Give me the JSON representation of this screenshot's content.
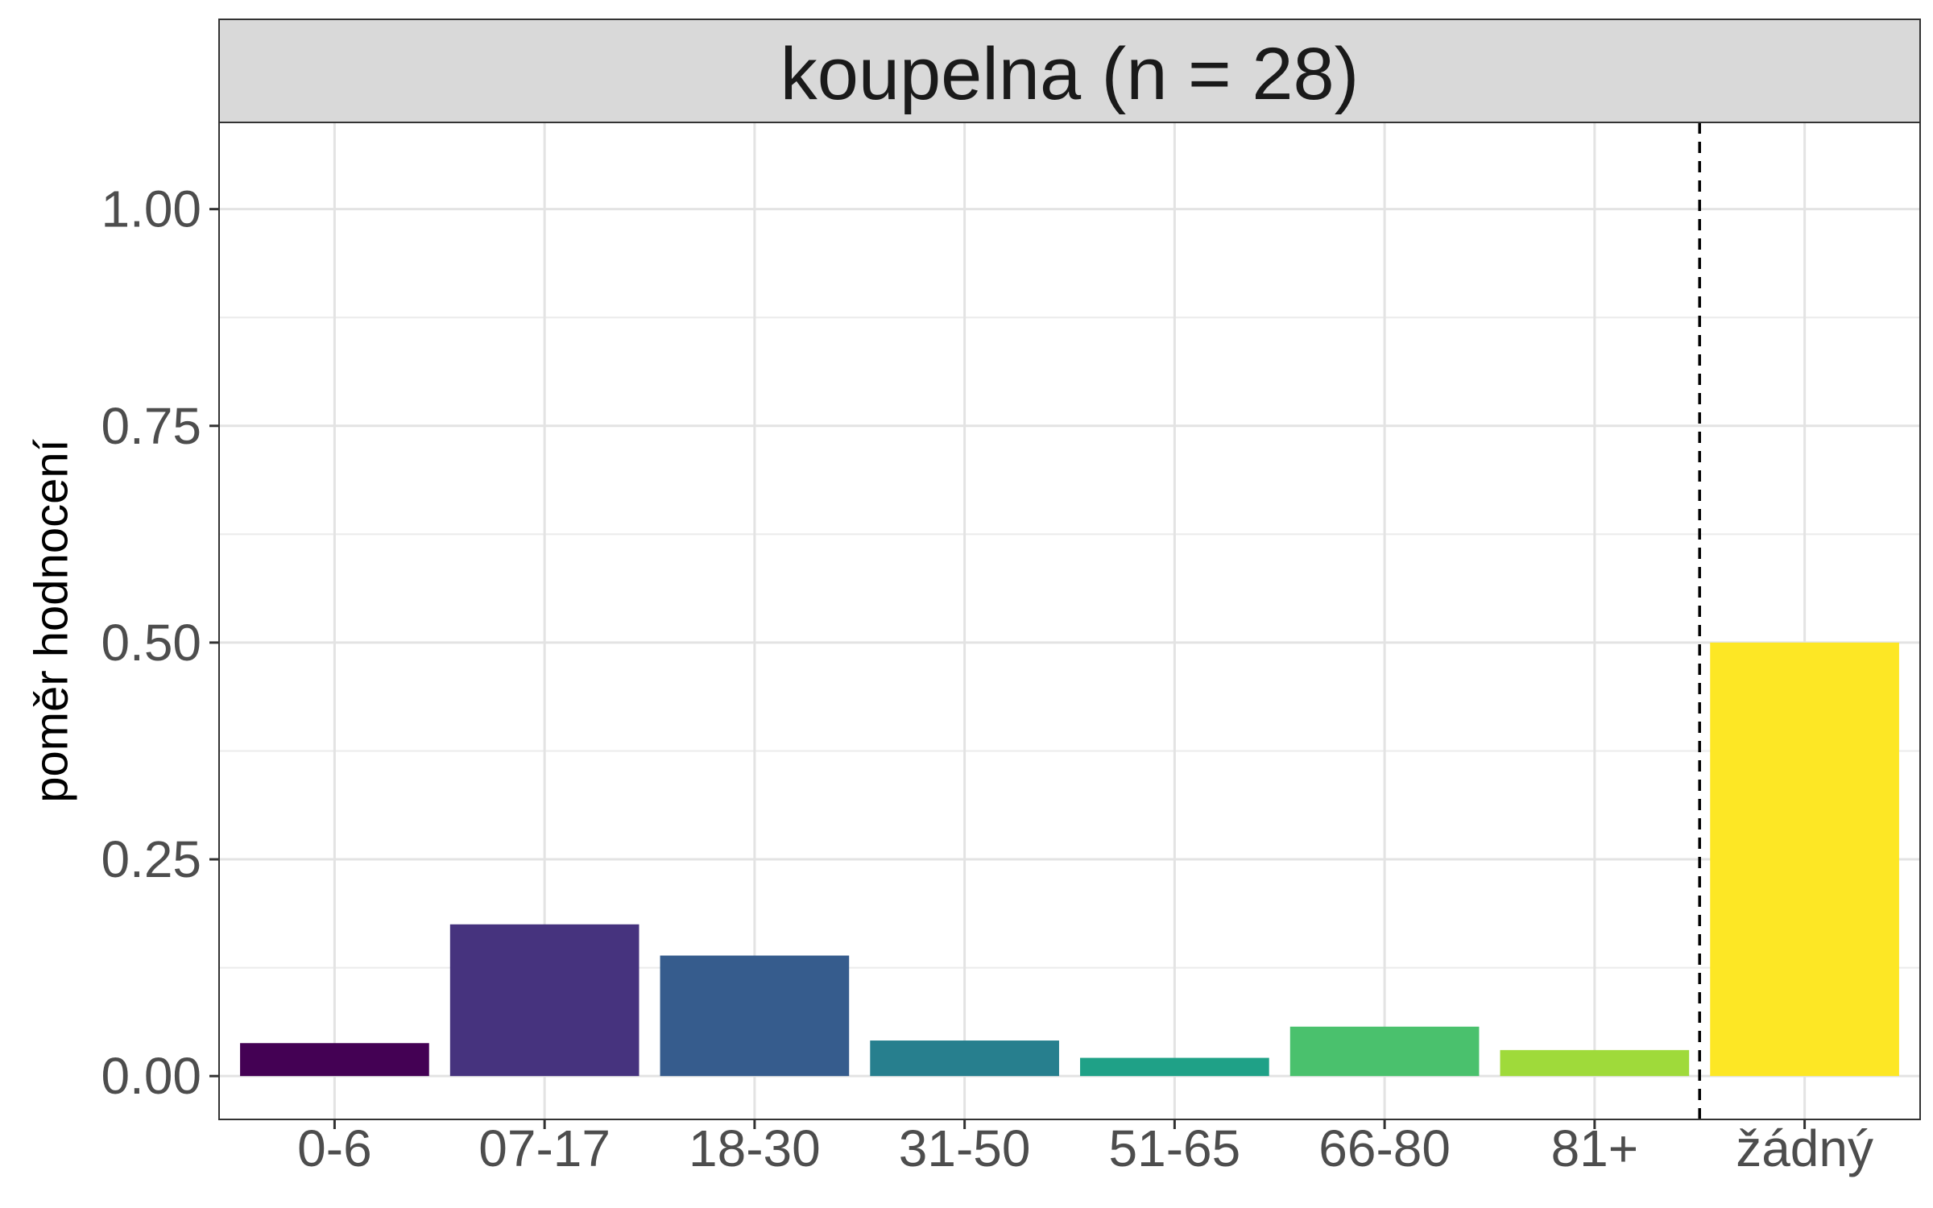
{
  "chart_data": {
    "type": "bar",
    "facet_title": "koupelna (n = 28)",
    "xlabel": "",
    "ylabel": "poměr hodnocení",
    "categories": [
      "0-6",
      "07-17",
      "18-30",
      "31-50",
      "51-65",
      "66-80",
      "81+",
      "žádný"
    ],
    "values": [
      0.038,
      0.175,
      0.139,
      0.041,
      0.021,
      0.057,
      0.03,
      0.5
    ],
    "colors": [
      "#440154",
      "#46337E",
      "#365C8D",
      "#277F8E",
      "#1FA187",
      "#4AC16D",
      "#9FDA3A",
      "#FDE725"
    ],
    "ylim": [
      -0.05,
      1.1
    ],
    "yticks": [
      0,
      0.25,
      0.5,
      0.75,
      1
    ],
    "ytick_labels": [
      "0.00",
      "0.25",
      "0.50",
      "0.75",
      "1.00"
    ],
    "separator": "dashed line between 81+ and žádný",
    "grid": true,
    "legend": "none"
  }
}
